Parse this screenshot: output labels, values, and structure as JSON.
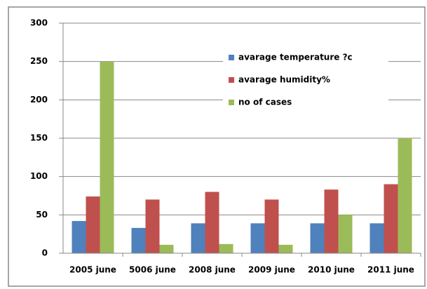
{
  "chart_data": {
    "type": "bar",
    "categories": [
      "2005 june",
      "5006 june",
      "2008 june",
      "2009 june",
      "2010 june",
      "2011 june"
    ],
    "series": [
      {
        "name": "avarage temperature ?c",
        "color": "#4f81bd",
        "values": [
          42,
          33,
          39,
          39,
          39,
          39
        ]
      },
      {
        "name": "avarage humidity%",
        "color": "#c0504d",
        "values": [
          74,
          70,
          80,
          70,
          83,
          90
        ]
      },
      {
        "name": "no of cases",
        "color": "#9bbb59",
        "values": [
          250,
          11,
          12,
          11,
          50,
          150
        ]
      }
    ],
    "ylim": [
      0,
      300
    ],
    "yticks": [
      0,
      50,
      100,
      150,
      200,
      250,
      300
    ],
    "grid": true,
    "legend": "upper-right"
  }
}
